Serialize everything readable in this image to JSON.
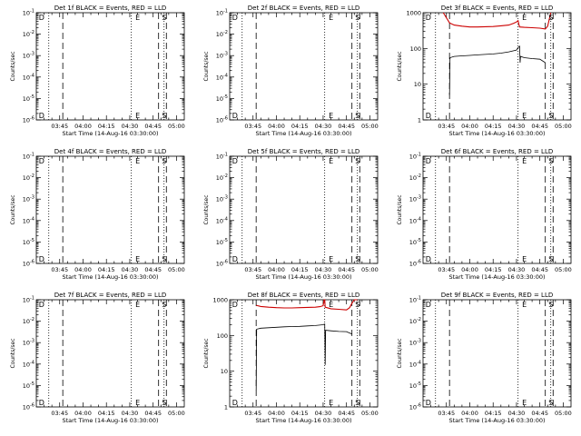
{
  "chart_data": [
    {
      "type": "line",
      "title": "Det 1f BLACK = Events, RED = LLD",
      "xlabel": "Start Time (14-Aug-16 03:30:00)",
      "ylabel": "Counts/sec",
      "yscale": "log",
      "ylim": [
        1e-06,
        0.1
      ],
      "xticks": [
        "03:45",
        "04:00",
        "04:15",
        "04:30",
        "04:45",
        "05:00"
      ],
      "xlim": [
        0,
        95
      ],
      "vlines_dotted": [
        8,
        61,
        82
      ],
      "vlines_dashed": [
        17,
        78.5,
        83.5
      ],
      "markers": [
        {
          "label": "D",
          "x": 1
        },
        {
          "label": "E",
          "x": 63
        },
        {
          "label": "S",
          "x": 80
        }
      ],
      "series": []
    },
    {
      "type": "line",
      "title": "Det 2f BLACK = Events, RED = LLD",
      "xlabel": "Start Time (14-Aug-16 03:30:00)",
      "ylabel": "Counts/sec",
      "yscale": "log",
      "ylim": [
        1e-06,
        0.1
      ],
      "xticks": [
        "03:45",
        "04:00",
        "04:15",
        "04:30",
        "04:45",
        "05:00"
      ],
      "xlim": [
        0,
        95
      ],
      "vlines_dotted": [
        8,
        61,
        82
      ],
      "vlines_dashed": [
        17,
        78.5,
        83.5
      ],
      "markers": [
        {
          "label": "D",
          "x": 1
        },
        {
          "label": "E",
          "x": 63
        },
        {
          "label": "S",
          "x": 80
        }
      ],
      "series": []
    },
    {
      "type": "line",
      "title": "Det 3f BLACK = Events, RED = LLD",
      "xlabel": "Start Time (14-Aug-16 03:30:00)",
      "ylabel": "Counts/sec",
      "yscale": "log",
      "ylim": [
        1,
        1000
      ],
      "yticklabels": [
        "1",
        "10",
        "100",
        "1000"
      ],
      "xticks": [
        "03:45",
        "04:00",
        "04:15",
        "04:30",
        "04:45",
        "05:00"
      ],
      "xlim": [
        0,
        95
      ],
      "vlines_dotted": [
        8,
        61,
        82
      ],
      "vlines_dashed": [
        17,
        78.5,
        83.5
      ],
      "markers": [
        {
          "label": "D",
          "x": 1
        },
        {
          "label": "E",
          "x": 63
        },
        {
          "label": "S",
          "x": 80
        }
      ],
      "series": [
        {
          "color": "#000000",
          "x": [
            17,
            17.3,
            20,
            25,
            30,
            35,
            40,
            45,
            50,
            55,
            60,
            61,
            62,
            62.3,
            62.6,
            65,
            70,
            75,
            78.5
          ],
          "y": [
            5,
            55,
            60,
            62,
            64,
            66,
            68,
            70,
            74,
            80,
            90,
            105,
            115,
            40,
            60,
            55,
            52,
            50,
            40
          ]
        },
        {
          "color": "#cc0000",
          "x": [
            13,
            17,
            20,
            25,
            30,
            35,
            40,
            45,
            50,
            55,
            58,
            60,
            61,
            61.5,
            62,
            65,
            70,
            75,
            78.5,
            80,
            82
          ],
          "y": [
            1000,
            520,
            450,
            420,
            400,
            400,
            405,
            410,
            430,
            450,
            500,
            550,
            600,
            480,
            400,
            390,
            380,
            370,
            350,
            420,
            1000
          ]
        }
      ]
    },
    {
      "type": "line",
      "title": "Det 4f BLACK = Events, RED = LLD",
      "xlabel": "Start Time (14-Aug-16 03:30:00)",
      "ylabel": "Counts/sec",
      "yscale": "log",
      "ylim": [
        1e-06,
        0.1
      ],
      "xticks": [
        "03:45",
        "04:00",
        "04:15",
        "04:30",
        "04:45",
        "05:00"
      ],
      "xlim": [
        0,
        95
      ],
      "vlines_dotted": [
        8,
        61,
        82
      ],
      "vlines_dashed": [
        17,
        78.5,
        83.5
      ],
      "markers": [
        {
          "label": "D",
          "x": 1
        },
        {
          "label": "E",
          "x": 63
        },
        {
          "label": "S",
          "x": 80
        }
      ],
      "series": []
    },
    {
      "type": "line",
      "title": "Det 5f BLACK = Events, RED = LLD",
      "xlabel": "Start Time (14-Aug-16 03:30:00)",
      "ylabel": "Counts/sec",
      "yscale": "log",
      "ylim": [
        1e-06,
        0.1
      ],
      "xticks": [
        "03:45",
        "04:00",
        "04:15",
        "04:30",
        "04:45",
        "05:00"
      ],
      "xlim": [
        0,
        95
      ],
      "vlines_dotted": [
        8,
        61,
        82
      ],
      "vlines_dashed": [
        17,
        78.5,
        83.5
      ],
      "markers": [
        {
          "label": "D",
          "x": 1
        },
        {
          "label": "E",
          "x": 63
        },
        {
          "label": "S",
          "x": 80
        }
      ],
      "series": []
    },
    {
      "type": "line",
      "title": "Det 6f BLACK = Events, RED = LLD",
      "xlabel": "Start Time (14-Aug-16 03:30:00)",
      "ylabel": "Counts/sec",
      "yscale": "log",
      "ylim": [
        1e-06,
        0.1
      ],
      "xticks": [
        "03:45",
        "04:00",
        "04:15",
        "04:30",
        "04:45",
        "05:00"
      ],
      "xlim": [
        0,
        95
      ],
      "vlines_dotted": [
        8,
        61,
        82
      ],
      "vlines_dashed": [
        17,
        78.5,
        83.5
      ],
      "markers": [
        {
          "label": "D",
          "x": 1
        },
        {
          "label": "E",
          "x": 63
        },
        {
          "label": "S",
          "x": 80
        }
      ],
      "series": []
    },
    {
      "type": "line",
      "title": "Det 7f BLACK = Events, RED = LLD",
      "xlabel": "Start Time (14-Aug-16 03:30:00)",
      "ylabel": "Counts/sec",
      "yscale": "log",
      "ylim": [
        1e-06,
        0.1
      ],
      "xticks": [
        "03:45",
        "04:00",
        "04:15",
        "04:30",
        "04:45",
        "05:00"
      ],
      "xlim": [
        0,
        95
      ],
      "vlines_dotted": [
        8,
        61,
        82
      ],
      "vlines_dashed": [
        17,
        78.5,
        83.5
      ],
      "markers": [
        {
          "label": "D",
          "x": 1
        },
        {
          "label": "E",
          "x": 63
        },
        {
          "label": "S",
          "x": 80
        }
      ],
      "series": []
    },
    {
      "type": "line",
      "title": "Det 8f BLACK = Events, RED = LLD",
      "xlabel": "Start Time (14-Aug-16 03:30:00)",
      "ylabel": "Counts/sec",
      "yscale": "log",
      "ylim": [
        1,
        1000
      ],
      "yticklabels": [
        "1",
        "10",
        "100",
        "1000"
      ],
      "xticks": [
        "03:45",
        "04:00",
        "04:15",
        "04:30",
        "04:45",
        "05:00"
      ],
      "xlim": [
        0,
        95
      ],
      "vlines_dotted": [
        8,
        61,
        82
      ],
      "vlines_dashed": [
        17,
        78.5,
        83.5
      ],
      "markers": [
        {
          "label": "D",
          "x": 1
        },
        {
          "label": "E",
          "x": 63
        },
        {
          "label": "S",
          "x": 80
        }
      ],
      "series": [
        {
          "color": "#000000",
          "x": [
            17,
            17.3,
            20,
            25,
            30,
            35,
            40,
            45,
            50,
            55,
            60,
            61,
            61.3,
            61.6,
            65,
            70,
            75,
            78.5
          ],
          "y": [
            3,
            150,
            160,
            165,
            170,
            175,
            178,
            180,
            185,
            190,
            200,
            210,
            15,
            140,
            135,
            130,
            128,
            110
          ]
        },
        {
          "color": "#cc0000",
          "x": [
            17,
            20,
            25,
            30,
            35,
            40,
            45,
            50,
            55,
            58,
            60,
            60.7,
            61,
            61.3,
            65,
            70,
            75,
            77,
            78.5,
            80,
            82
          ],
          "y": [
            700,
            650,
            620,
            600,
            590,
            590,
            600,
            610,
            620,
            640,
            680,
            1000,
            1000,
            620,
            560,
            540,
            520,
            600,
            800,
            1000,
            1000
          ]
        }
      ]
    },
    {
      "type": "line",
      "title": "Det 9f BLACK = Events, RED = LLD",
      "xlabel": "Start Time (14-Aug-16 03:30:00)",
      "ylabel": "Counts/sec",
      "yscale": "log",
      "ylim": [
        1e-06,
        0.1
      ],
      "xticks": [
        "03:45",
        "04:00",
        "04:15",
        "04:30",
        "04:45",
        "05:00"
      ],
      "xlim": [
        0,
        95
      ],
      "vlines_dotted": [
        8,
        61,
        82
      ],
      "vlines_dashed": [
        17,
        78.5,
        83.5
      ],
      "markers": [
        {
          "label": "D",
          "x": 1
        },
        {
          "label": "E",
          "x": 63
        },
        {
          "label": "S",
          "x": 80
        }
      ],
      "series": []
    }
  ]
}
